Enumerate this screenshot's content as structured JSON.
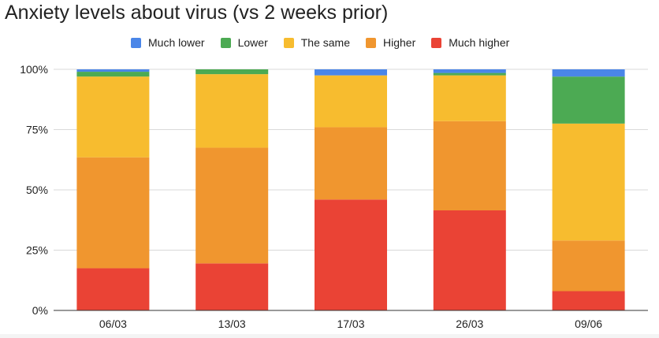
{
  "title": "Anxiety levels about virus (vs 2 weeks prior)",
  "chart_data": {
    "type": "bar",
    "stacked": true,
    "title": "Anxiety levels about virus (vs 2 weeks prior)",
    "xlabel": "",
    "ylabel": "",
    "categories": [
      "06/03",
      "13/03",
      "17/03",
      "26/03",
      "09/06"
    ],
    "y_ticks": [
      "0%",
      "25%",
      "50%",
      "75%",
      "100%"
    ],
    "ylim": [
      0,
      100
    ],
    "grid": true,
    "legend_position": "top",
    "series": [
      {
        "name": "Much higher",
        "color": "#ea4335",
        "values": [
          17.5,
          19.5,
          46,
          41.5,
          8
        ]
      },
      {
        "name": "Higher",
        "color": "#f0962f",
        "values": [
          46,
          48,
          30,
          37,
          21
        ]
      },
      {
        "name": "The same",
        "color": "#f7bc2f",
        "values": [
          33.5,
          30.5,
          21.5,
          19,
          48.5
        ]
      },
      {
        "name": "Lower",
        "color": "#4caa53",
        "values": [
          2,
          2,
          0,
          1,
          19.5
        ]
      },
      {
        "name": "Much lower",
        "color": "#4a86e8",
        "values": [
          1,
          0,
          2.5,
          1.5,
          3
        ]
      }
    ]
  },
  "legend": [
    {
      "label": "Much lower",
      "color": "#4a86e8"
    },
    {
      "label": "Lower",
      "color": "#4caa53"
    },
    {
      "label": "The same",
      "color": "#f7bc2f"
    },
    {
      "label": "Higher",
      "color": "#f0962f"
    },
    {
      "label": "Much higher",
      "color": "#ea4335"
    }
  ]
}
